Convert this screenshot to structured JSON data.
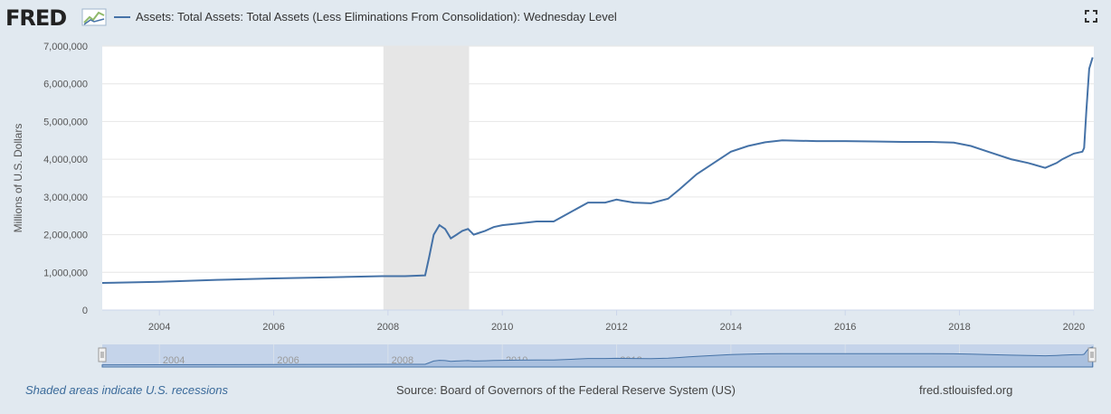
{
  "header": {
    "logo_text": "FRED",
    "series_label": "Assets: Total Assets: Total Assets (Less Eliminations From Consolidation): Wednesday Level"
  },
  "footer": {
    "recession_note": "Shaded areas indicate U.S. recessions",
    "source": "Source: Board of Governors of the Federal Reserve System (US)",
    "site": "fred.stlouisfed.org"
  },
  "colors": {
    "line": "#4572a7",
    "recession": "#e6e6e6",
    "navigator": "#c5d4ea"
  },
  "chart_data": {
    "type": "line",
    "title": "Assets: Total Assets: Total Assets (Less Eliminations From Consolidation): Wednesday Level",
    "xlabel": "",
    "ylabel": "Millions of U.S. Dollars",
    "xlim": [
      2003.0,
      2020.35
    ],
    "ylim": [
      0,
      7000000
    ],
    "x_ticks": [
      2004,
      2006,
      2008,
      2010,
      2012,
      2014,
      2016,
      2018,
      2020
    ],
    "y_ticks": [
      0,
      1000000,
      2000000,
      3000000,
      4000000,
      5000000,
      6000000,
      7000000
    ],
    "y_tick_labels": [
      "0",
      "1,000,000",
      "2,000,000",
      "3,000,000",
      "4,000,000",
      "5,000,000",
      "6,000,000",
      "7,000,000"
    ],
    "recessions": [
      [
        2007.92,
        2009.42
      ]
    ],
    "series": [
      {
        "name": "Assets: Total Assets: Total Assets (Less Eliminations From Consolidation): Wednesday Level",
        "x": [
          2003.0,
          2004.0,
          2005.0,
          2006.0,
          2007.0,
          2007.9,
          2008.3,
          2008.65,
          2008.72,
          2008.8,
          2008.9,
          2009.0,
          2009.1,
          2009.2,
          2009.3,
          2009.4,
          2009.5,
          2009.6,
          2009.7,
          2009.85,
          2010.0,
          2010.3,
          2010.6,
          2010.9,
          2011.2,
          2011.5,
          2011.8,
          2012.0,
          2012.1,
          2012.3,
          2012.6,
          2012.9,
          2013.1,
          2013.4,
          2013.7,
          2014.0,
          2014.3,
          2014.6,
          2014.9,
          2015.2,
          2015.5,
          2015.8,
          2016.0,
          2016.5,
          2017.0,
          2017.5,
          2017.9,
          2018.2,
          2018.5,
          2018.9,
          2019.2,
          2019.5,
          2019.7,
          2019.8,
          2020.0,
          2020.15,
          2020.18,
          2020.22,
          2020.27,
          2020.33
        ],
        "values": [
          720000,
          750000,
          800000,
          840000,
          870000,
          900000,
          900000,
          920000,
          1400000,
          2000000,
          2250000,
          2150000,
          1900000,
          2000000,
          2100000,
          2150000,
          2000000,
          2050000,
          2100000,
          2200000,
          2250000,
          2300000,
          2350000,
          2350000,
          2600000,
          2850000,
          2850000,
          2930000,
          2900000,
          2850000,
          2830000,
          2950000,
          3200000,
          3600000,
          3900000,
          4200000,
          4350000,
          4450000,
          4500000,
          4490000,
          4480000,
          4480000,
          4480000,
          4470000,
          4460000,
          4460000,
          4440000,
          4350000,
          4200000,
          4000000,
          3900000,
          3770000,
          3900000,
          4000000,
          4150000,
          4200000,
          4300000,
          5300000,
          6400000,
          6700000
        ]
      }
    ],
    "navigator": {
      "x_ticks": [
        2004,
        2006,
        2008,
        2010,
        2012,
        2014,
        2016,
        2018
      ],
      "range": [
        2003.0,
        2020.35
      ]
    }
  }
}
